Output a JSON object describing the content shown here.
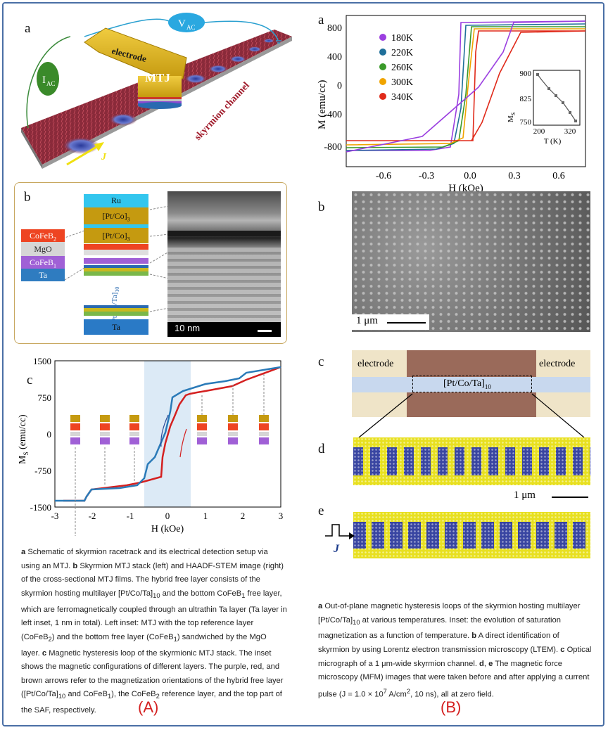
{
  "panels": {
    "A_a": "a",
    "A_b": "b",
    "A_c": "c",
    "B_a": "a",
    "B_b": "b",
    "B_c": "c",
    "B_d": "d",
    "B_e": "e"
  },
  "schematic": {
    "vac": "V",
    "vac_sub": "AC",
    "iac": "I",
    "iac_sub": "AC",
    "electrode": "electrode",
    "mtj": "MTJ",
    "channel": "skyrmion channel",
    "current": "J"
  },
  "stack": {
    "ru": "Ru",
    "ptco1": "[Pt/Co]",
    "ptco1_sub": "3",
    "ptco2": "[Pt/Co]",
    "ptco2_sub": "3",
    "repeat": "[Pt/Co/Ta]",
    "repeat_sub": "10",
    "ta": "Ta",
    "inset": [
      {
        "label": "CoFeB",
        "sub": "2",
        "color": "#ee4422"
      },
      {
        "label": "MgO",
        "sub": "",
        "color": "#d6d6d6"
      },
      {
        "label": "CoFeB",
        "sub": "1",
        "color": "#a060d6"
      },
      {
        "label": "Ta",
        "sub": "",
        "color": "#2f7cc0"
      }
    ],
    "scalebar": "10 nm"
  },
  "hysteresis_c": {
    "ylabel": "M",
    "ylabel_sub": "S",
    "ylabel_unit": " (emu/cc)",
    "xlabel": "H (kOe)",
    "yticks": [
      "1500",
      "750",
      "0",
      "-750",
      "-1500"
    ],
    "xticks": [
      "-3",
      "-2",
      "-1",
      "0",
      "1",
      "2",
      "3"
    ]
  },
  "hysteresis_a": {
    "ylabel": "M (emu/cc)",
    "xlabel": "H (kOe)",
    "yticks": [
      "800",
      "400",
      "0",
      "-400",
      "-800"
    ],
    "xticks": [
      "-0.6",
      "-0.3",
      "0.0",
      "0.3",
      "0.6"
    ],
    "legend": [
      "180K",
      "220K",
      "260K",
      "300K",
      "340K"
    ],
    "colors": [
      "#9b3fe0",
      "#1f6f9a",
      "#3a9a2a",
      "#f0a400",
      "#e02a1a"
    ],
    "inset_ylabel": "M",
    "inset_ylabel_sub": "S",
    "inset_xlabel": "T (K)",
    "inset_yticks": [
      "900",
      "825",
      "750"
    ],
    "inset_xticks": [
      "200",
      "320"
    ]
  },
  "ltem": {
    "scalebar": "1 μm"
  },
  "optical": {
    "left": "electrode",
    "right": "electrode",
    "channel": "[Pt/Co/Ta]",
    "channel_sub": "10"
  },
  "mfm": {
    "scalebar": "1 μm",
    "pulse": "J"
  },
  "caption_A": {
    "p1a": "a",
    "p1": " Schematic of skyrmion racetrack and its electrical detection setup via using an MTJ. ",
    "p2a": "b",
    "p2": " Skyrmion MTJ stack (left) and HAADF-STEM image (right) of the cross-sectional MTJ films. The hybrid free layer consists of the skyrmion hosting multilayer [Pt/Co/Ta]",
    "p2sub": "10",
    "p3": " and the bottom CoFeB",
    "p3sub": "1",
    "p4": " free layer, which are ferromagnetically coupled through an ultrathin Ta layer (Ta layer in left inset, 1 nm in total). Left inset: MTJ with the top reference layer (CoFeB",
    "p4sub": "2",
    "p5": ") and the bottom free layer (CoFeB",
    "p5sub": "1",
    "p6": ") sandwiched by the MgO layer. ",
    "p7a": "c",
    "p7": " Magnetic hysteresis loop of the skyrmionic MTJ stack. The inset shows the magnetic configurations of different layers. The purple, red, and brown arrows refer to the magnetization orientations of the hybrid free layer ([Pt/Co/Ta]",
    "p7sub": "10",
    "p8": " and CoFeB",
    "p8sub": "1",
    "p9": "), the CoFeB",
    "p9sub": "2",
    "p10": " reference layer, and the top part of the SAF, respectively."
  },
  "caption_B": {
    "p1a": "a",
    "p1": " Out-of-plane magnetic hysteresis loops of the skyrmion hosting multilayer [Pt/Co/Ta]",
    "p1sub": "10",
    "p2": " at various temperatures. Inset: the evolution of saturation magnetization as a function of temperature. ",
    "p3a": "b",
    "p3": " A direct identification of skyrmion by using Lorentz electron transmission microscopy (LTEM). ",
    "p4a": "c",
    "p4": " Optical micrograph of a 1 μm-wide skyrmion channel. ",
    "p5a": "d",
    "p5b": "e",
    "p5": " The magnetic force microscopy (MFM) images that were taken before and after applying a current pulse (J = 1.0 × 10",
    "p5sup": "7",
    "p6": " A/cm",
    "p6sup": "2",
    "p7": ", 10 ns), all at zero field."
  },
  "labels": {
    "A": "(A)",
    "B": "(B)"
  }
}
